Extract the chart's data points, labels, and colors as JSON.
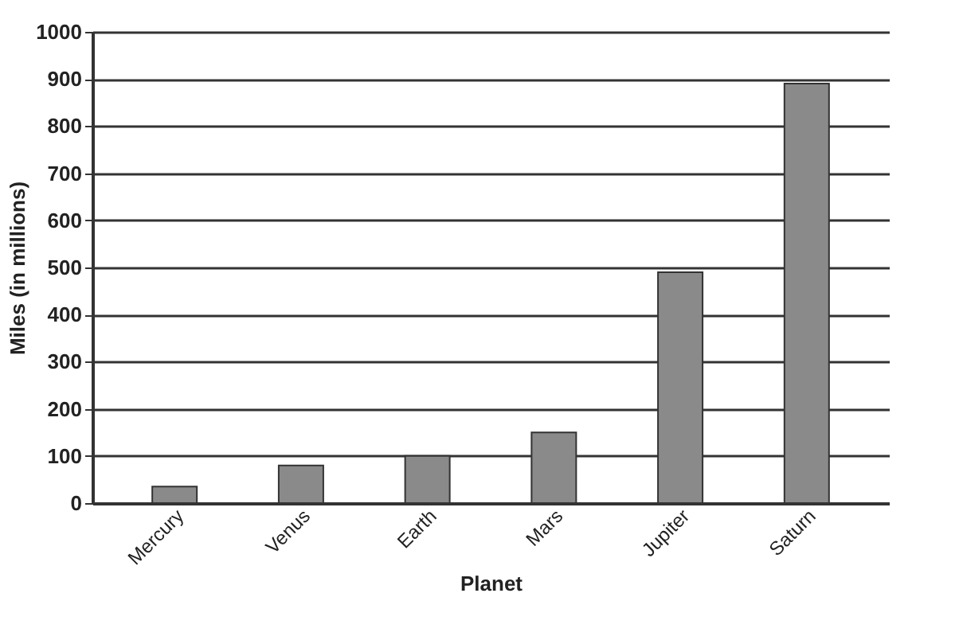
{
  "chart_data": {
    "type": "bar",
    "xlabel": "Planet",
    "ylabel": "Miles (in millions)",
    "categories": [
      "Mercury",
      "Venus",
      "Earth",
      "Mars",
      "Jupiter",
      "Saturn"
    ],
    "values": [
      35,
      80,
      100,
      150,
      490,
      890
    ],
    "color": "#8a8a8a",
    "ylim": [
      0,
      1000
    ],
    "yticks": [
      0,
      100,
      200,
      300,
      400,
      500,
      600,
      700,
      800,
      900,
      1000
    ],
    "grid": "y"
  }
}
